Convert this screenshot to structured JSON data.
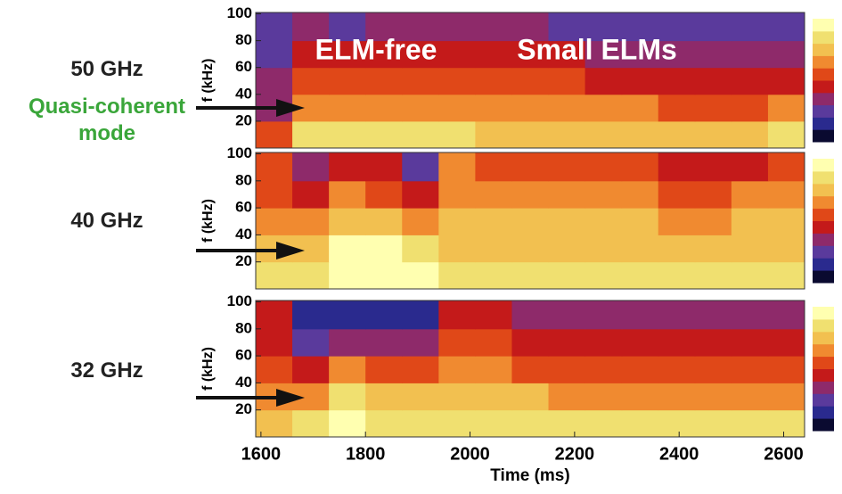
{
  "chart_data": [
    {
      "type": "heatmap",
      "label": "50 GHz",
      "annotation": "Quasi-coherent mode",
      "notes": [
        "ELM-free",
        "Small ELMs"
      ],
      "ylabel": "f (kHz)",
      "xlim": [
        1590,
        2640
      ],
      "ylim": [
        0,
        101
      ],
      "yticks": [
        20,
        40,
        60,
        80,
        100
      ],
      "x": [
        1590,
        1660,
        1730,
        1800,
        1870,
        1940,
        2010,
        2080,
        2150,
        2220,
        2290,
        2360,
        2430,
        2500,
        2570,
        2640
      ],
      "y": [
        0,
        20,
        40,
        60,
        80,
        101
      ],
      "z": [
        [
          0.5,
          0.8,
          0.85,
          0.85,
          0.8,
          0.8,
          0.75,
          0.75,
          0.75,
          0.75,
          0.75,
          0.75,
          0.75,
          0.75,
          0.8
        ],
        [
          0.35,
          0.6,
          0.65,
          0.65,
          0.6,
          0.6,
          0.6,
          0.6,
          0.6,
          0.6,
          0.6,
          0.55,
          0.55,
          0.55,
          0.6
        ],
        [
          0.3,
          0.5,
          0.55,
          0.55,
          0.5,
          0.5,
          0.5,
          0.5,
          0.5,
          0.45,
          0.45,
          0.45,
          0.45,
          0.45,
          0.45
        ],
        [
          0.25,
          0.45,
          0.4,
          0.45,
          0.45,
          0.45,
          0.45,
          0.4,
          0.4,
          0.35,
          0.35,
          0.35,
          0.35,
          0.35,
          0.35
        ],
        [
          0.2,
          0.3,
          0.25,
          0.3,
          0.35,
          0.35,
          0.3,
          0.3,
          0.25,
          0.25,
          0.2,
          0.2,
          0.2,
          0.2,
          0.2
        ]
      ]
    },
    {
      "type": "heatmap",
      "label": "40 GHz",
      "ylabel": "f (kHz)",
      "xlim": [
        1590,
        2640
      ],
      "ylim": [
        0,
        101
      ],
      "yticks": [
        20,
        40,
        60,
        80,
        100
      ],
      "x": [
        1590,
        1660,
        1730,
        1800,
        1870,
        1940,
        2010,
        2080,
        2150,
        2220,
        2290,
        2360,
        2430,
        2500,
        2570,
        2640
      ],
      "y": [
        0,
        20,
        40,
        60,
        80,
        101
      ],
      "z": [
        [
          0.8,
          0.85,
          0.95,
          0.95,
          0.95,
          0.85,
          0.85,
          0.85,
          0.85,
          0.85,
          0.85,
          0.85,
          0.85,
          0.85,
          0.85
        ],
        [
          0.7,
          0.75,
          0.9,
          0.9,
          0.85,
          0.75,
          0.75,
          0.75,
          0.75,
          0.75,
          0.75,
          0.75,
          0.75,
          0.75,
          0.75
        ],
        [
          0.6,
          0.6,
          0.75,
          0.7,
          0.6,
          0.7,
          0.7,
          0.7,
          0.7,
          0.7,
          0.7,
          0.65,
          0.65,
          0.7,
          0.7
        ],
        [
          0.55,
          0.45,
          0.6,
          0.5,
          0.4,
          0.65,
          0.65,
          0.6,
          0.6,
          0.6,
          0.6,
          0.55,
          0.55,
          0.6,
          0.6
        ],
        [
          0.5,
          0.3,
          0.45,
          0.4,
          0.25,
          0.6,
          0.55,
          0.55,
          0.55,
          0.5,
          0.5,
          0.45,
          0.4,
          0.45,
          0.5
        ]
      ]
    },
    {
      "type": "heatmap",
      "label": "32 GHz",
      "ylabel": "f (kHz)",
      "xlabel": "Time (ms)",
      "xlim": [
        1590,
        2640
      ],
      "ylim": [
        0,
        101
      ],
      "yticks": [
        20,
        40,
        60,
        80,
        100
      ],
      "xticks": [
        1600,
        1800,
        2000,
        2200,
        2400,
        2600
      ],
      "x": [
        1590,
        1660,
        1730,
        1800,
        1870,
        1940,
        2010,
        2080,
        2150,
        2220,
        2290,
        2360,
        2430,
        2500,
        2570,
        2640
      ],
      "y": [
        0,
        20,
        40,
        60,
        80,
        101
      ],
      "z": [
        [
          0.75,
          0.8,
          0.9,
          0.85,
          0.85,
          0.8,
          0.8,
          0.8,
          0.8,
          0.8,
          0.8,
          0.8,
          0.8,
          0.8,
          0.8
        ],
        [
          0.6,
          0.65,
          0.8,
          0.75,
          0.7,
          0.7,
          0.7,
          0.7,
          0.65,
          0.65,
          0.65,
          0.65,
          0.65,
          0.65,
          0.65
        ],
        [
          0.5,
          0.4,
          0.6,
          0.55,
          0.5,
          0.6,
          0.6,
          0.55,
          0.55,
          0.55,
          0.5,
          0.5,
          0.5,
          0.5,
          0.5
        ],
        [
          0.45,
          0.2,
          0.3,
          0.3,
          0.3,
          0.5,
          0.5,
          0.45,
          0.45,
          0.45,
          0.4,
          0.4,
          0.4,
          0.4,
          0.4
        ],
        [
          0.4,
          0.15,
          0.15,
          0.15,
          0.15,
          0.4,
          0.4,
          0.35,
          0.35,
          0.35,
          0.3,
          0.3,
          0.3,
          0.3,
          0.3
        ]
      ]
    }
  ],
  "colormap": [
    "#0a0a30",
    "#2a2a8e",
    "#5a3a9c",
    "#8e2a6a",
    "#c41a1a",
    "#e04818",
    "#f08a30",
    "#f2c050",
    "#f0e070",
    "#ffffb0"
  ]
}
